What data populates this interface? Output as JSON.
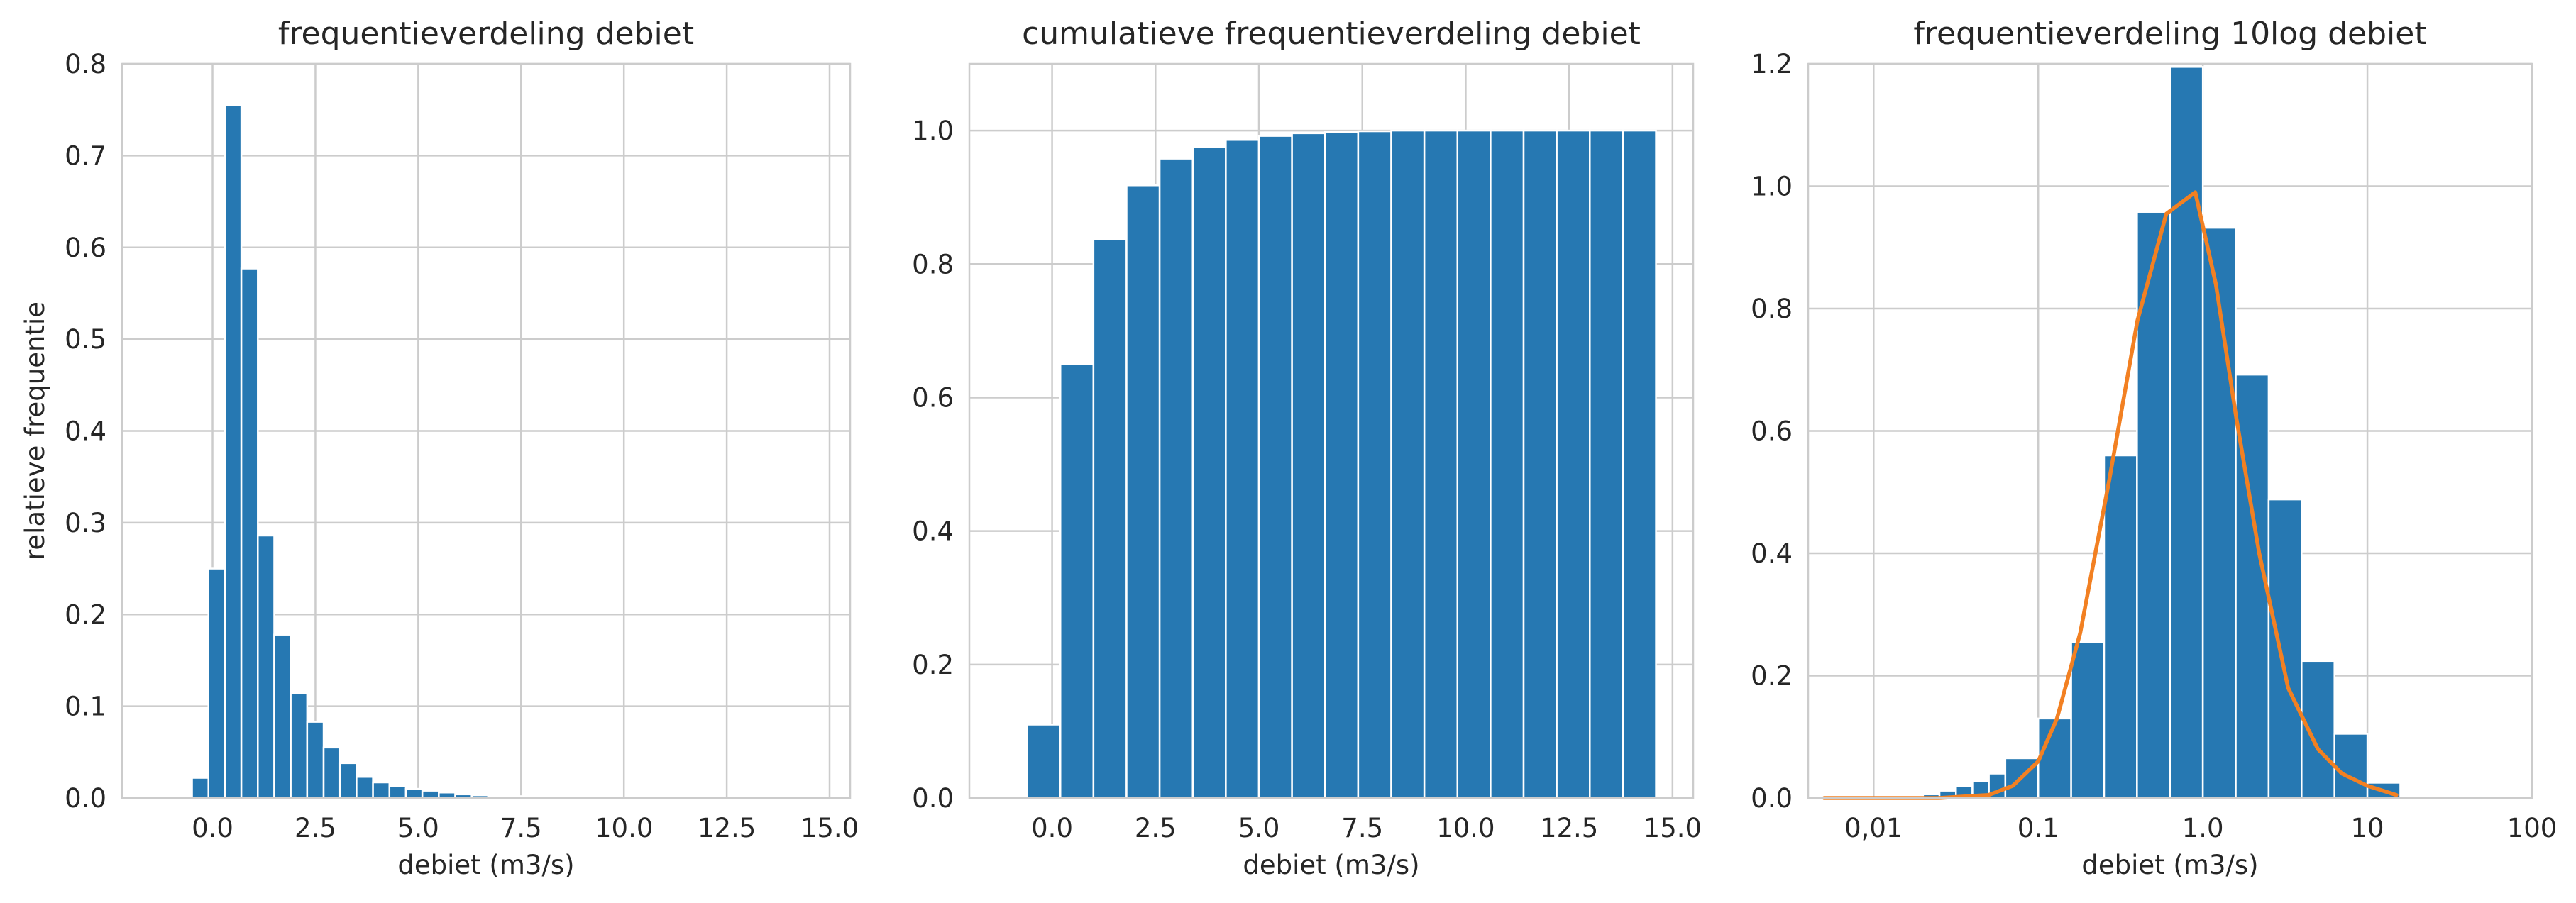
{
  "figure": {
    "background": "#ffffff",
    "grid_color": "#cccccc",
    "bar_color": "#2678b2",
    "bar_edge_color": "#ffffff",
    "line_color": "#f28022"
  },
  "chart_data": [
    {
      "type": "bar",
      "title": "frequentieverdeling debiet",
      "xlabel": "debiet (m3/s)",
      "ylabel": "relatieve frequentie",
      "x_scale": "linear",
      "xlim": [
        -2.2,
        15.5
      ],
      "ylim": [
        0,
        0.8
      ],
      "xticks": [
        0.0,
        2.5,
        5.0,
        7.5,
        10.0,
        12.5,
        15.0
      ],
      "xtick_labels": [
        "0.0",
        "2.5",
        "5.0",
        "7.5",
        "10.0",
        "12.5",
        "15.0"
      ],
      "yticks": [
        0,
        0.1,
        0.2,
        0.3,
        0.4,
        0.5,
        0.6,
        0.7,
        0.8
      ],
      "ytick_labels": [
        "0.0",
        "0.1",
        "0.2",
        "0.3",
        "0.4",
        "0.5",
        "0.6",
        "0.7",
        "0.8"
      ],
      "grid": true,
      "bar_width": 0.4,
      "bin_left_edges": [
        -0.5,
        -0.1,
        0.3,
        0.7,
        1.1,
        1.5,
        1.9,
        2.3,
        2.7,
        3.1,
        3.5,
        3.9,
        4.3,
        4.7,
        5.1,
        5.5,
        5.9,
        6.3,
        6.7,
        7.1,
        7.5,
        7.9,
        8.3,
        8.7,
        9.1,
        9.5
      ],
      "values": [
        0.022,
        0.25,
        0.755,
        0.577,
        0.286,
        0.178,
        0.114,
        0.083,
        0.055,
        0.038,
        0.023,
        0.017,
        0.013,
        0.01,
        0.008,
        0.006,
        0.004,
        0.003,
        0.002,
        0.002,
        0.001,
        0.001,
        0.001,
        0.001,
        0.0008,
        0.0006
      ]
    },
    {
      "type": "bar",
      "title": "cumulatieve frequentieverdeling debiet",
      "xlabel": "debiet (m3/s)",
      "x_scale": "linear",
      "xlim": [
        -2.0,
        15.5
      ],
      "ylim": [
        0,
        1.1
      ],
      "xticks": [
        0.0,
        2.5,
        5.0,
        7.5,
        10.0,
        12.5,
        15.0
      ],
      "xtick_labels": [
        "0.0",
        "2.5",
        "5.0",
        "7.5",
        "10.0",
        "12.5",
        "15.0"
      ],
      "yticks": [
        0,
        0.2,
        0.4,
        0.6,
        0.8,
        1.0
      ],
      "ytick_labels": [
        "0.0",
        "0.2",
        "0.4",
        "0.6",
        "0.8",
        "1.0"
      ],
      "grid": true,
      "bar_width": 0.8,
      "bin_left_edges": [
        -0.6,
        0.2,
        1.0,
        1.8,
        2.6,
        3.4,
        4.2,
        5.0,
        5.8,
        6.6,
        7.4,
        8.2,
        9.0,
        9.8,
        10.6,
        11.4,
        12.2,
        13.0,
        13.8
      ],
      "values": [
        0.11,
        0.65,
        0.837,
        0.918,
        0.958,
        0.975,
        0.986,
        0.992,
        0.996,
        0.998,
        0.999,
        1.0,
        1.0,
        1.0,
        1.0,
        1.0,
        1.0,
        1.0,
        1.0
      ]
    },
    {
      "type": "bar",
      "title": "frequentieverdeling 10log debiet",
      "xlabel": "debiet (m3/s)",
      "x_scale": "log10",
      "xlim": [
        0.004,
        100
      ],
      "ylim": [
        0,
        1.2
      ],
      "xticks": [
        0.01,
        0.1,
        1,
        10,
        100
      ],
      "xtick_labels": [
        "0,01",
        "0.1",
        "1.0",
        "10",
        "100"
      ],
      "yticks": [
        0,
        0.2,
        0.4,
        0.6,
        0.8,
        1.0,
        1.2
      ],
      "ytick_labels": [
        "0.0",
        "0.2",
        "0.4",
        "0.6",
        "0.8",
        "1.0",
        "1.2"
      ],
      "grid": true,
      "bin_left_edges_log10": [
        -1.7,
        -1.6,
        -1.5,
        -1.4,
        -1.3,
        -1.2,
        -1.0,
        -0.8,
        -0.6,
        -0.4,
        -0.2,
        0.0,
        0.2,
        0.4,
        0.6,
        0.8
      ],
      "bin_right_edges_log10": [
        -1.6,
        -1.5,
        -1.4,
        -1.3,
        -1.2,
        -1.0,
        -0.8,
        -0.6,
        -0.4,
        -0.2,
        0.0,
        0.2,
        0.4,
        0.6,
        0.8,
        1.0
      ],
      "values": [
        0.006,
        0.012,
        0.02,
        0.028,
        0.04,
        0.065,
        0.13,
        0.255,
        0.56,
        0.958,
        1.195,
        0.932,
        0.692,
        0.488,
        0.224,
        0.105
      ],
      "extra_bin": {
        "left_log10": 1.0,
        "right_log10": 1.2,
        "value": 0.025
      },
      "line": {
        "x": [
          0.005,
          0.025,
          0.05,
          0.07,
          0.1,
          0.13,
          0.18,
          0.27,
          0.4,
          0.6,
          0.9,
          1.2,
          1.6,
          2.2,
          3.3,
          5,
          7,
          10,
          15
        ],
        "y": [
          0.0,
          0.0,
          0.005,
          0.02,
          0.06,
          0.13,
          0.27,
          0.52,
          0.78,
          0.955,
          0.99,
          0.84,
          0.62,
          0.4,
          0.18,
          0.08,
          0.04,
          0.02,
          0.005
        ]
      }
    }
  ]
}
